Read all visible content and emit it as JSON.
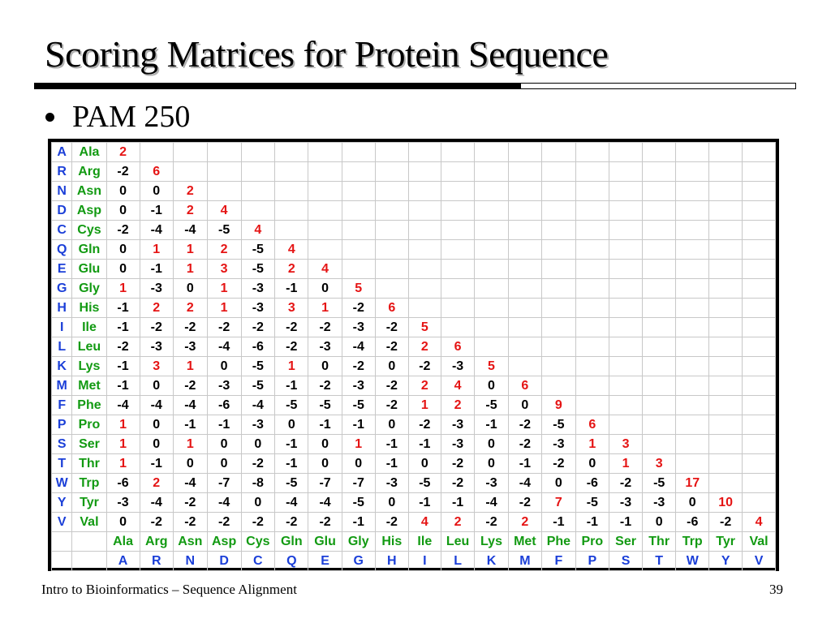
{
  "slide": {
    "title": "Scoring Matrices for Protein Sequence",
    "bullet": "PAM 250",
    "footer_left": "Intro to Bioinformatics – Sequence Alignment",
    "page_number": "39"
  },
  "colors": {
    "one_letter": "#1b3fd8",
    "three_letter": "#129a12",
    "positive": "#e51414",
    "other": "#000000"
  },
  "matrix": {
    "name": "PAM 250",
    "one_letter": [
      "A",
      "R",
      "N",
      "D",
      "C",
      "Q",
      "E",
      "G",
      "H",
      "I",
      "L",
      "K",
      "M",
      "F",
      "P",
      "S",
      "T",
      "W",
      "Y",
      "V"
    ],
    "three_letter": [
      "Ala",
      "Arg",
      "Asn",
      "Asp",
      "Cys",
      "Gln",
      "Glu",
      "Gly",
      "His",
      "Ile",
      "Leu",
      "Lys",
      "Met",
      "Phe",
      "Pro",
      "Ser",
      "Thr",
      "Trp",
      "Tyr",
      "Val"
    ],
    "rows": [
      [
        "2"
      ],
      [
        "-2",
        "6"
      ],
      [
        "0",
        "0",
        "2"
      ],
      [
        "0",
        "-1",
        "2",
        "4"
      ],
      [
        "-2",
        "-4",
        "-4",
        "-5",
        "4"
      ],
      [
        "0",
        "1",
        "1",
        "2",
        "-5",
        "4"
      ],
      [
        "0",
        "-1",
        "1",
        "3",
        "-5",
        "2",
        "4"
      ],
      [
        "1",
        "-3",
        "0",
        "1",
        "-3",
        "-1",
        "0",
        "5"
      ],
      [
        "-1",
        "2",
        "2",
        "1",
        "-3",
        "3",
        "1",
        "-2",
        "6"
      ],
      [
        "-1",
        "-2",
        "-2",
        "-2",
        "-2",
        "-2",
        "-2",
        "-3",
        "-2",
        "5"
      ],
      [
        "-2",
        "-3",
        "-3",
        "-4",
        "-6",
        "-2",
        "-3",
        "-4",
        "-2",
        "2",
        "6"
      ],
      [
        "-1",
        "3",
        "1",
        "0",
        "-5",
        "1",
        "0",
        "-2",
        "0",
        "-2",
        "-3",
        "5"
      ],
      [
        "-1",
        "0",
        "-2",
        "-3",
        "-5",
        "-1",
        "-2",
        "-3",
        "-2",
        "2",
        "4",
        "0",
        "6"
      ],
      [
        "-4",
        "-4",
        "-4",
        "-6",
        "-4",
        "-5",
        "-5",
        "-5",
        "-2",
        "1",
        "2",
        "-5",
        "0",
        "9"
      ],
      [
        "1",
        "0",
        "-1",
        "-1",
        "-3",
        "0",
        "-1",
        "-1",
        "0",
        "-2",
        "-3",
        "-1",
        "-2",
        "-5",
        "6"
      ],
      [
        "1",
        "0",
        "1",
        "0",
        "0",
        "-1",
        "0",
        "1",
        "-1",
        "-1",
        "-3",
        "0",
        "-2",
        "-3",
        "1",
        "3"
      ],
      [
        "1",
        "-1",
        "0",
        "0",
        "-2",
        "-1",
        "0",
        "0",
        "-1",
        "0",
        "-2",
        "0",
        "-1",
        "-2",
        "0",
        "1",
        "3"
      ],
      [
        "-6",
        "2",
        "-4",
        "-7",
        "-8",
        "-5",
        "-7",
        "-7",
        "-3",
        "-5",
        "-2",
        "-3",
        "-4",
        "0",
        "-6",
        "-2",
        "-5",
        "17"
      ],
      [
        "-3",
        "-4",
        "-2",
        "-4",
        "0",
        "-4",
        "-4",
        "-5",
        "0",
        "-1",
        "-1",
        "-4",
        "-2",
        "7",
        "-5",
        "-3",
        "-3",
        "0",
        "10"
      ],
      [
        "0",
        "-2",
        "-2",
        "-2",
        "-2",
        "-2",
        "-2",
        "-1",
        "-2",
        "4",
        "2",
        "-2",
        "2",
        "-1",
        "-1",
        "-1",
        "0",
        "-6",
        "-2",
        "4"
      ]
    ]
  }
}
